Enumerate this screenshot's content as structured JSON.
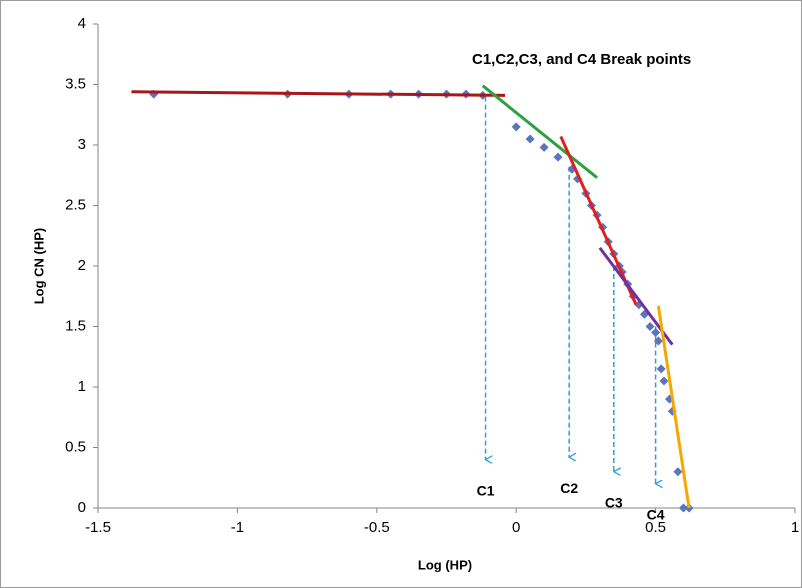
{
  "chart_data": {
    "type": "scatter",
    "annotation": "C1,C2,C3, and C4 Break points",
    "x_label": "Log (HP)",
    "y_label": "Log CN (HP)",
    "xlim": [
      -1.5,
      1
    ],
    "ylim": [
      0,
      4
    ],
    "xticks": [
      -1.5,
      -1,
      -0.5,
      0,
      0.5,
      1
    ],
    "yticks": [
      0,
      0.5,
      1,
      1.5,
      2,
      2.5,
      3,
      3.5,
      4
    ],
    "marker": "diamond",
    "color": "#5a74bd",
    "x": [
      -1.3,
      -0.82,
      -0.6,
      -0.45,
      -0.35,
      -0.25,
      -0.18,
      -0.12,
      0.0,
      0.05,
      0.1,
      0.15,
      0.2,
      0.22,
      0.25,
      0.27,
      0.29,
      0.31,
      0.33,
      0.35,
      0.37,
      0.38,
      0.4,
      0.42,
      0.44,
      0.46,
      0.48,
      0.5,
      0.51,
      0.52,
      0.53,
      0.55,
      0.56,
      0.58,
      0.6,
      0.62
    ],
    "values": [
      3.42,
      3.42,
      3.42,
      3.42,
      3.42,
      3.42,
      3.42,
      3.41,
      3.15,
      3.05,
      2.98,
      2.9,
      2.8,
      2.72,
      2.6,
      2.5,
      2.42,
      2.32,
      2.2,
      2.1,
      2.0,
      1.95,
      1.85,
      1.75,
      1.68,
      1.6,
      1.5,
      1.45,
      1.38,
      1.15,
      1.05,
      0.9,
      0.8,
      0.3,
      0.0,
      0.0
    ],
    "fit_lines": [
      {
        "color": "#a8161b",
        "x": [
          -1.38,
          -0.04
        ],
        "values": [
          3.44,
          3.41
        ]
      },
      {
        "color": "#2ea043",
        "x": [
          -0.12,
          0.29
        ],
        "values": [
          3.49,
          2.73
        ]
      },
      {
        "color": "#e0201c",
        "x": [
          0.16,
          0.43
        ],
        "values": [
          3.07,
          1.68
        ]
      },
      {
        "color": "#7030a0",
        "x": [
          0.3,
          0.56
        ],
        "values": [
          2.15,
          1.35
        ]
      },
      {
        "color": "#f5a800",
        "x": [
          0.51,
          0.62
        ],
        "values": [
          1.67,
          0.0
        ]
      }
    ],
    "arrow_color": "#2e9fd6",
    "arrows": [
      {
        "label": "C1",
        "x": -0.11,
        "y_start": 3.4,
        "y_end": 0.4
      },
      {
        "label": "C2",
        "x": 0.19,
        "y_start": 2.82,
        "y_end": 0.42
      },
      {
        "label": "C3",
        "x": 0.35,
        "y_start": 2.0,
        "y_end": 0.3
      },
      {
        "label": "C4",
        "x": 0.5,
        "y_start": 1.5,
        "y_end": 0.2
      }
    ]
  }
}
